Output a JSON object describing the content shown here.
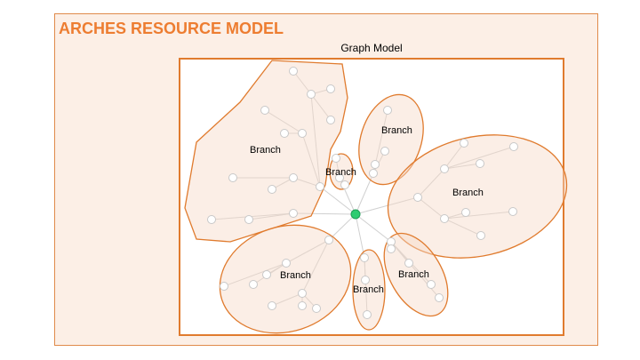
{
  "title": "ARCHES RESOURCE MODEL",
  "graph_model_label": "Graph Model",
  "branch_label": "Branch",
  "colors": {
    "outer_fill": "#fcefe6",
    "accent": "#ed7d31",
    "branch_stroke": "#e07b2e",
    "branch_fill": "#f7d9c7",
    "root_node": "#2ecc71",
    "node": "#ffffff",
    "edge": "#d0d0d0"
  }
}
